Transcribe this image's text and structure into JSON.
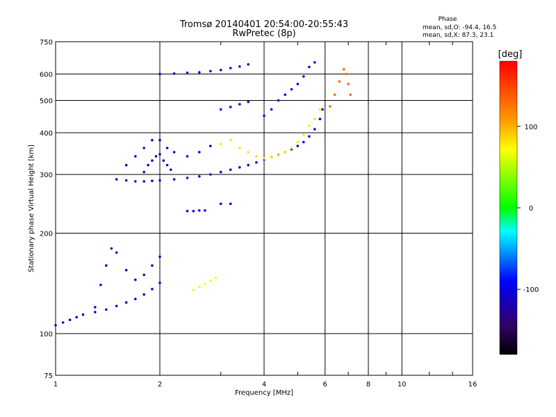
{
  "chart_data": {
    "type": "scatter",
    "title": "Tromsø 20140401 20:54:00-20:55:43",
    "subtitle": "RwPretec (8p)",
    "xlabel": "Frequency [MHz]",
    "ylabel": "Stationary phase Virtual Height [km]",
    "x_scale": "log",
    "y_scale": "log",
    "xlim": [
      1,
      16
    ],
    "ylim": [
      75,
      750
    ],
    "x_ticks": [
      1,
      2,
      4,
      6,
      8,
      10,
      16
    ],
    "x_tick_labels": [
      "1",
      "2",
      "4",
      "6",
      "8",
      "10",
      "16"
    ],
    "y_ticks": [
      75,
      100,
      200,
      300,
      400,
      500,
      600,
      750
    ],
    "y_tick_labels": [
      "75",
      "100",
      "200",
      "300",
      "400",
      "500",
      "600",
      "750"
    ],
    "grid": true,
    "phase_stats": {
      "title": "Phase",
      "line_o": "mean, sd,O: -94.4, 16.5",
      "line_x": "mean, sd,X: 87.3, 23.1"
    },
    "colorbar": {
      "label": "[deg]",
      "range": [
        -180,
        180
      ],
      "ticks": [
        100,
        0,
        -100
      ],
      "tick_labels": [
        "100",
        "0",
        "-100"
      ],
      "colormap": "rainbow"
    },
    "traces": [
      {
        "name": "",
        "phase": -110,
        "points": [
          [
            1.0,
            106
          ],
          [
            1.05,
            108
          ],
          [
            1.1,
            110
          ],
          [
            1.15,
            112
          ],
          [
            1.2,
            114
          ],
          [
            1.3,
            116
          ],
          [
            1.4,
            118
          ],
          [
            1.5,
            121
          ],
          [
            1.6,
            124
          ],
          [
            1.7,
            127
          ],
          [
            1.8,
            131
          ],
          [
            1.9,
            136
          ],
          [
            2.0,
            142
          ]
        ]
      },
      {
        "name": "",
        "phase": -105,
        "points": [
          [
            1.5,
            290
          ],
          [
            1.6,
            288
          ],
          [
            1.7,
            286
          ],
          [
            1.8,
            286
          ],
          [
            1.9,
            287
          ],
          [
            2.0,
            288
          ],
          [
            2.2,
            290
          ],
          [
            2.4,
            293
          ],
          [
            2.6,
            296
          ],
          [
            2.8,
            300
          ],
          [
            3.0,
            305
          ],
          [
            3.2,
            310
          ],
          [
            3.4,
            315
          ],
          [
            3.6,
            320
          ],
          [
            3.8,
            326
          ],
          [
            4.0,
            333
          ],
          [
            4.2,
            338
          ],
          [
            4.4,
            343
          ],
          [
            4.6,
            350
          ],
          [
            4.8,
            357
          ],
          [
            5.0,
            365
          ],
          [
            5.2,
            375
          ],
          [
            5.4,
            390
          ],
          [
            5.6,
            410
          ],
          [
            5.8,
            440
          ],
          [
            5.9,
            470
          ]
        ]
      },
      {
        "name": "",
        "phase": -100,
        "points": [
          [
            2.0,
            600
          ],
          [
            2.2,
            602
          ],
          [
            2.4,
            605
          ],
          [
            2.6,
            607
          ],
          [
            2.8,
            612
          ],
          [
            3.0,
            617
          ],
          [
            3.2,
            625
          ],
          [
            3.4,
            632
          ],
          [
            3.6,
            641
          ]
        ]
      },
      {
        "name": "",
        "phase": -100,
        "points": [
          [
            3.0,
            470
          ],
          [
            3.2,
            478
          ],
          [
            3.4,
            487
          ],
          [
            3.6,
            495
          ]
        ]
      },
      {
        "name": "",
        "phase": -110,
        "points": [
          [
            1.6,
            320
          ],
          [
            1.7,
            340
          ],
          [
            1.8,
            360
          ],
          [
            1.9,
            380
          ],
          [
            2.0,
            380
          ],
          [
            2.1,
            360
          ],
          [
            2.2,
            350
          ],
          [
            2.4,
            340
          ],
          [
            2.6,
            350
          ],
          [
            2.8,
            365
          ]
        ]
      },
      {
        "name": "",
        "phase": -110,
        "points": [
          [
            1.8,
            305
          ],
          [
            1.85,
            320
          ],
          [
            1.9,
            330
          ],
          [
            1.95,
            340
          ],
          [
            2.0,
            345
          ],
          [
            2.05,
            330
          ],
          [
            2.1,
            320
          ],
          [
            2.15,
            310
          ]
        ]
      },
      {
        "name": "",
        "phase": -115,
        "points": [
          [
            1.3,
            120
          ],
          [
            1.35,
            140
          ],
          [
            1.4,
            160
          ],
          [
            1.45,
            180
          ],
          [
            1.5,
            175
          ],
          [
            1.6,
            155
          ],
          [
            1.7,
            145
          ],
          [
            1.8,
            150
          ],
          [
            1.9,
            160
          ],
          [
            2.0,
            170
          ]
        ]
      },
      {
        "name": "",
        "phase": 80,
        "points": [
          [
            3.0,
            370
          ],
          [
            3.2,
            380
          ],
          [
            3.4,
            360
          ],
          [
            3.6,
            350
          ],
          [
            3.8,
            340
          ],
          [
            4.0,
            335
          ],
          [
            4.2,
            338
          ],
          [
            4.4,
            342
          ],
          [
            4.6,
            350
          ],
          [
            4.8,
            360
          ],
          [
            5.0,
            375
          ],
          [
            5.2,
            395
          ],
          [
            5.4,
            420
          ],
          [
            5.6,
            440
          ],
          [
            5.8,
            470
          ]
        ]
      },
      {
        "name": "",
        "phase": 130,
        "points": [
          [
            6.2,
            480
          ],
          [
            6.4,
            520
          ],
          [
            6.6,
            570
          ],
          [
            6.8,
            620
          ],
          [
            6.9,
            600
          ],
          [
            7.0,
            560
          ],
          [
            7.1,
            520
          ]
        ]
      },
      {
        "name": "",
        "phase": -95,
        "points": [
          [
            4.0,
            450
          ],
          [
            4.2,
            470
          ],
          [
            4.4,
            500
          ],
          [
            4.6,
            520
          ],
          [
            4.8,
            540
          ],
          [
            5.0,
            560
          ],
          [
            5.2,
            590
          ],
          [
            5.4,
            630
          ],
          [
            5.6,
            650
          ]
        ]
      },
      {
        "name": "",
        "phase": 75,
        "points": [
          [
            2.5,
            135
          ],
          [
            2.6,
            138
          ],
          [
            2.7,
            141
          ],
          [
            2.8,
            144
          ],
          [
            2.9,
            147
          ]
        ]
      },
      {
        "name": "",
        "phase": -95,
        "points": [
          [
            2.4,
            233
          ],
          [
            2.5,
            233
          ],
          [
            2.6,
            234
          ],
          [
            2.7,
            234
          ],
          [
            3.0,
            245
          ],
          [
            3.2,
            245
          ]
        ]
      }
    ]
  }
}
